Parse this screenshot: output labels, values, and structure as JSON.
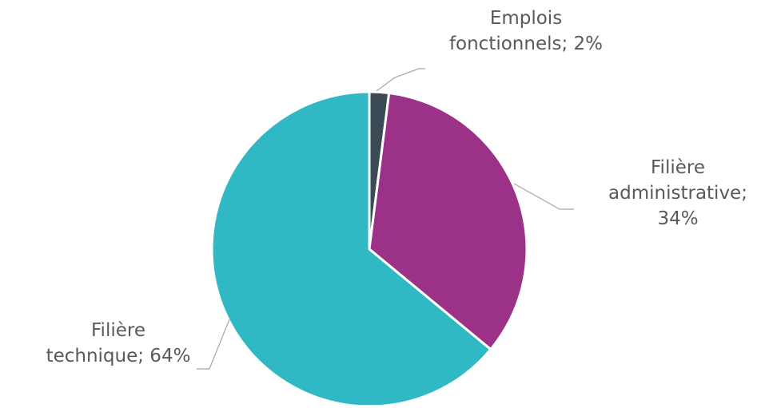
{
  "chart_data": {
    "type": "pie",
    "title": "",
    "slices": [
      {
        "label_lines": [
          "Emplois",
          "fonctionnels; 2%"
        ],
        "name": "Emplois fonctionnels",
        "value": 2,
        "color": "#3b4a55"
      },
      {
        "label_lines": [
          "Filière",
          "administrative;",
          "34%"
        ],
        "name": "Filière administrative",
        "value": 34,
        "color": "#9b3287"
      },
      {
        "label_lines": [
          "Filière",
          "technique; 64%"
        ],
        "name": "Filière technique",
        "value": 64,
        "color": "#31b8c5"
      }
    ],
    "start_angle_deg": 0,
    "direction": "clockwise",
    "legend": "none",
    "data_labels": "outside with leader lines"
  }
}
